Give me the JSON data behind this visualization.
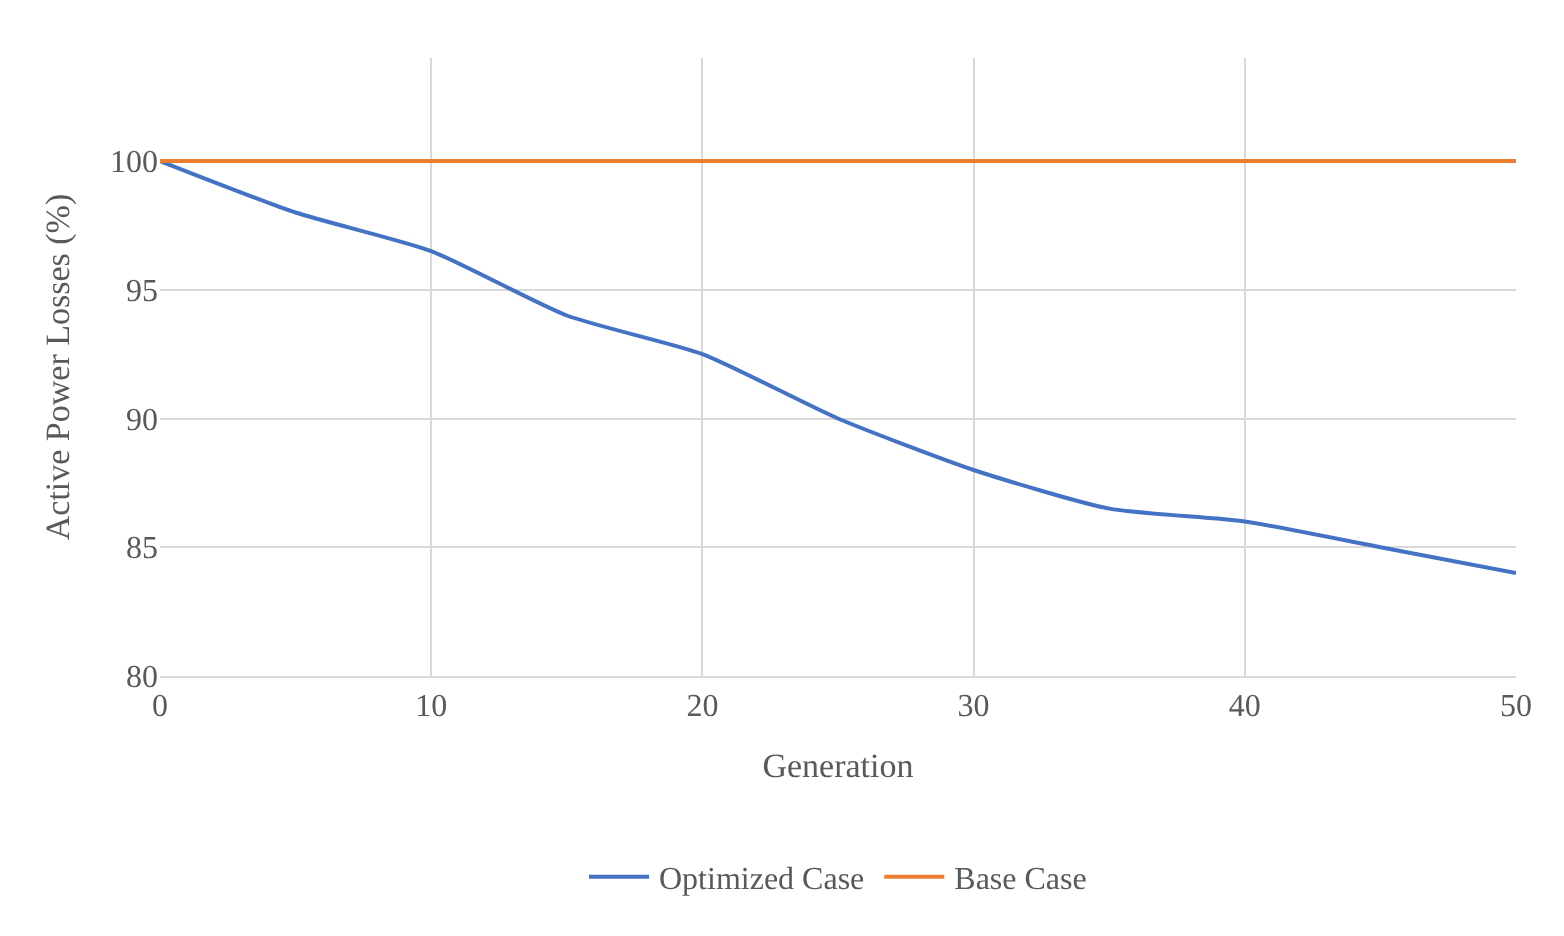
{
  "chart_data": {
    "type": "line",
    "xlabel": "Generation",
    "ylabel": "Active Power Losses (%)",
    "x": [
      0,
      5,
      10,
      15,
      20,
      25,
      30,
      35,
      40,
      45,
      50
    ],
    "series": [
      {
        "name": "Optimized Case",
        "color": "#4472c4",
        "values": [
          100,
          98,
          96.5,
          94,
          92.5,
          90,
          88,
          86.5,
          86,
          85,
          84
        ]
      },
      {
        "name": "Base Case",
        "color": "#ed7d31",
        "values": [
          100,
          100,
          100,
          100,
          100,
          100,
          100,
          100,
          100,
          100,
          100
        ]
      }
    ],
    "xlim": [
      0,
      50
    ],
    "xticks": [
      0,
      10,
      20,
      30,
      40,
      50
    ],
    "ylim": [
      80,
      104
    ],
    "yticks": [
      80,
      85,
      90,
      95,
      100
    ],
    "grid": true,
    "legend": "bottom",
    "marker": "none",
    "line_style": "solid"
  }
}
